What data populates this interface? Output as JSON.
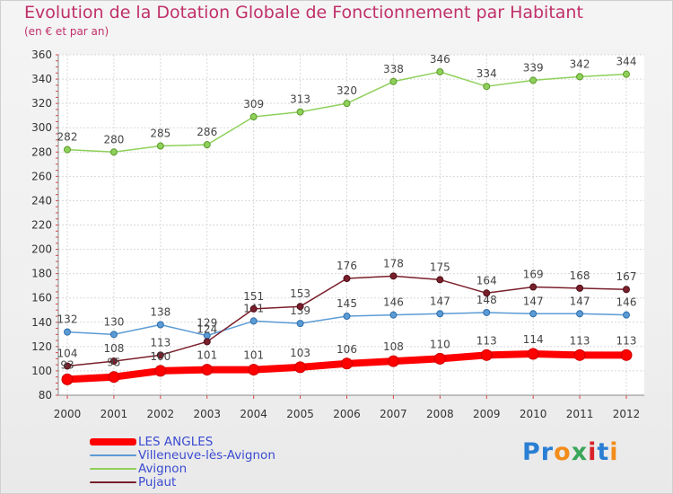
{
  "chart_data": {
    "type": "line",
    "title": "Evolution de la Dotation Globale de Fonctionnement par Habitant",
    "subtitle": "(en € et par an)",
    "x": [
      "2000",
      "2001",
      "2002",
      "2003",
      "2004",
      "2005",
      "2006",
      "2007",
      "2008",
      "2009",
      "2010",
      "2011",
      "2012"
    ],
    "ylim": [
      80,
      360
    ],
    "yticks": [
      80,
      100,
      120,
      140,
      160,
      180,
      200,
      220,
      240,
      260,
      280,
      300,
      320,
      340,
      360
    ],
    "grid": true,
    "legend_position": "bottom-left",
    "series": [
      {
        "name": "LES ANGLES",
        "color": "#ff0000",
        "values": [
          93,
          95,
          100,
          101,
          101,
          103,
          106,
          108,
          110,
          113,
          114,
          113,
          113
        ]
      },
      {
        "name": "Villeneuve-lès-Avignon",
        "color": "#5b9bd5",
        "values": [
          132,
          130,
          138,
          129,
          141,
          139,
          145,
          146,
          147,
          148,
          147,
          147,
          146
        ]
      },
      {
        "name": "Avignon",
        "color": "#8ed05a",
        "values": [
          282,
          280,
          285,
          286,
          309,
          313,
          320,
          338,
          346,
          334,
          339,
          342,
          344
        ]
      },
      {
        "name": "Pujaut",
        "color": "#7a1f2b",
        "values": [
          104,
          108,
          113,
          124,
          151,
          153,
          176,
          178,
          175,
          164,
          169,
          168,
          167
        ]
      }
    ]
  },
  "logo": {
    "text": "Proxiti",
    "colors": [
      "#2a7fd4",
      "#2a7fd4",
      "#f28c1a",
      "#3aa65a",
      "#d8232a",
      "#2a7fd4",
      "#f28c1a"
    ]
  }
}
